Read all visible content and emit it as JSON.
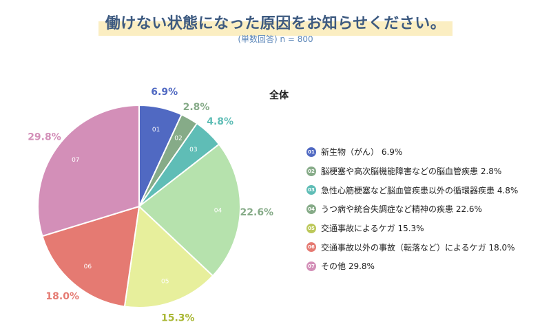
{
  "header": {
    "title": "働けない状態になった原因をお知らせください。",
    "subtitle": "(単数回答) n = 800"
  },
  "chart_data": {
    "type": "pie",
    "title": "全体",
    "unit": "%",
    "slices": [
      {
        "num": "01",
        "label": "新生物（がん）",
        "value": 6.9,
        "value_label": "6.9%",
        "color": "#5069c2",
        "text_color": "#5069c2"
      },
      {
        "num": "02",
        "label": "脳梗塞や高次脳機能障害などの脳血管疾患",
        "value": 2.8,
        "value_label": "2.8%",
        "color": "#86ab88",
        "text_color": "#86ab88"
      },
      {
        "num": "03",
        "label": "急性心筋梗塞など脳血管疾患以外の循環器疾患",
        "value": 4.8,
        "value_label": "4.8%",
        "color": "#5fbdb6",
        "text_color": "#5fbdb6"
      },
      {
        "num": "04",
        "label": "うつ病や統合失調症など精神の疾患",
        "value": 22.6,
        "value_label": "22.6%",
        "color": "#b6e2ad",
        "text_color": "#86ab88"
      },
      {
        "num": "05",
        "label": "交通事故によるケガ",
        "value": 15.3,
        "value_label": "15.3%",
        "color": "#e7ef9c",
        "text_color": "#a9b734"
      },
      {
        "num": "06",
        "label": "交通事故以外の事故（転落など）によるケガ",
        "value": 18.0,
        "value_label": "18.0%",
        "color": "#e57a72",
        "text_color": "#e57a72"
      },
      {
        "num": "07",
        "label": "その他",
        "value": 29.8,
        "value_label": "29.8%",
        "color": "#d38fb8",
        "text_color": "#d38fb8"
      }
    ]
  }
}
